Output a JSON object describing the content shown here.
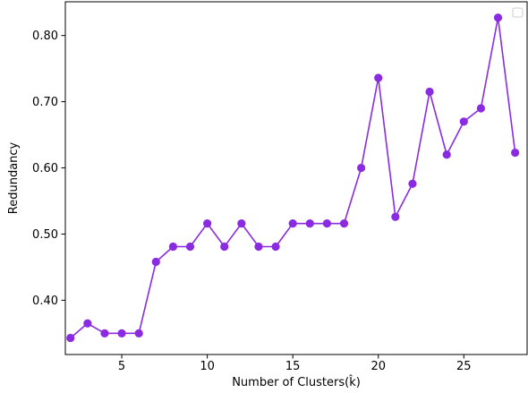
{
  "chart_data": {
    "type": "line",
    "xlabel": "Number of Clusters(k̂)",
    "ylabel": "Redundancy",
    "xlim": [
      1.7,
      28.7
    ],
    "ylim": [
      0.318,
      0.851
    ],
    "x_ticks": [
      5,
      10,
      15,
      20,
      25
    ],
    "y_ticks": [
      0.4,
      0.5,
      0.6,
      0.7,
      0.8
    ],
    "y_tick_labels": [
      "0.40",
      "0.50",
      "0.60",
      "0.70",
      "0.80"
    ],
    "grid": false,
    "legend": "top-right (empty)",
    "series": [
      {
        "color": "#8a2be2",
        "marker": "circle",
        "x": [
          2,
          3,
          4,
          5,
          6,
          7,
          8,
          9,
          10,
          11,
          12,
          13,
          14,
          15,
          16,
          17,
          18,
          19,
          20,
          21,
          22,
          23,
          24,
          25,
          26,
          27,
          28
        ],
        "values": [
          0.343,
          0.365,
          0.35,
          0.35,
          0.35,
          0.458,
          0.481,
          0.481,
          0.516,
          0.481,
          0.516,
          0.481,
          0.481,
          0.516,
          0.516,
          0.516,
          0.516,
          0.6,
          0.736,
          0.526,
          0.576,
          0.715,
          0.62,
          0.67,
          0.69,
          0.827,
          0.623
        ]
      }
    ]
  }
}
